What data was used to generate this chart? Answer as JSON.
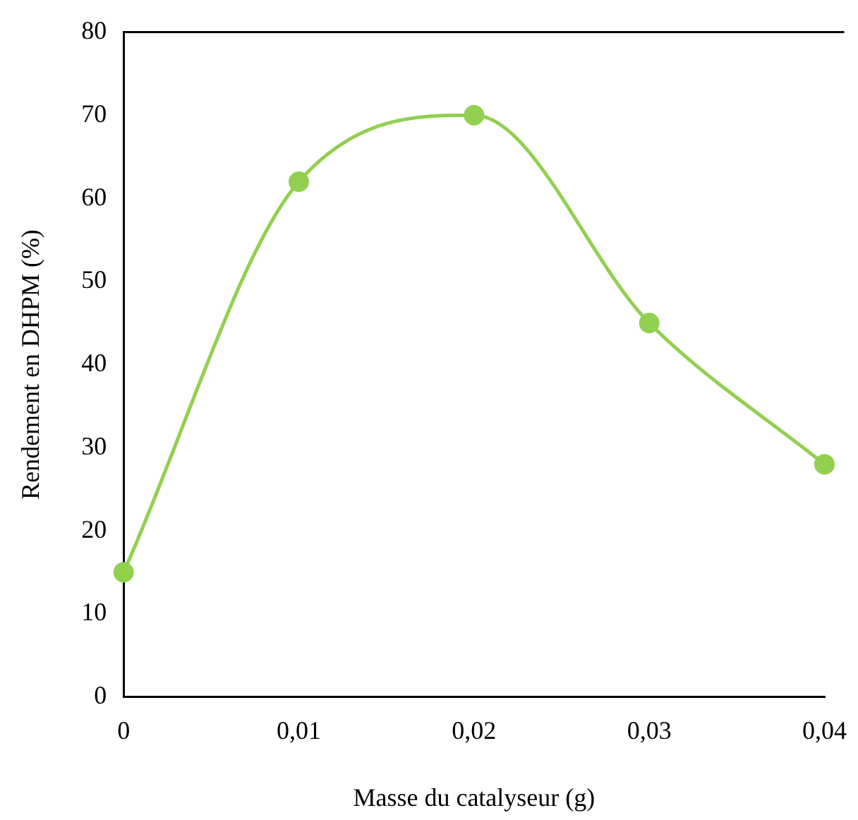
{
  "chart_data": {
    "type": "line",
    "xlabel": "Masse du catalyseur (g)",
    "ylabel": "Rendement en DHPM (%)",
    "x": [
      0,
      0.01,
      0.02,
      0.03,
      0.04
    ],
    "series": [
      {
        "color": "#92d050",
        "values": [
          15,
          62,
          70,
          45,
          28
        ]
      }
    ],
    "xlim": [
      0,
      0.04
    ],
    "xticks": [
      0,
      {
        "value": 0.01,
        "label": "0,01"
      },
      {
        "value": 0.02,
        "label": "0,02"
      },
      {
        "value": 0.03,
        "label": "0,03"
      },
      {
        "value": 0.04,
        "label": "0,04"
      }
    ],
    "ylim": [
      0,
      80
    ],
    "yticks": [
      0,
      10,
      20,
      30,
      40,
      50,
      60,
      70,
      80
    ],
    "grid": false,
    "legend": false,
    "marker": "circle",
    "line_style": "solid"
  }
}
